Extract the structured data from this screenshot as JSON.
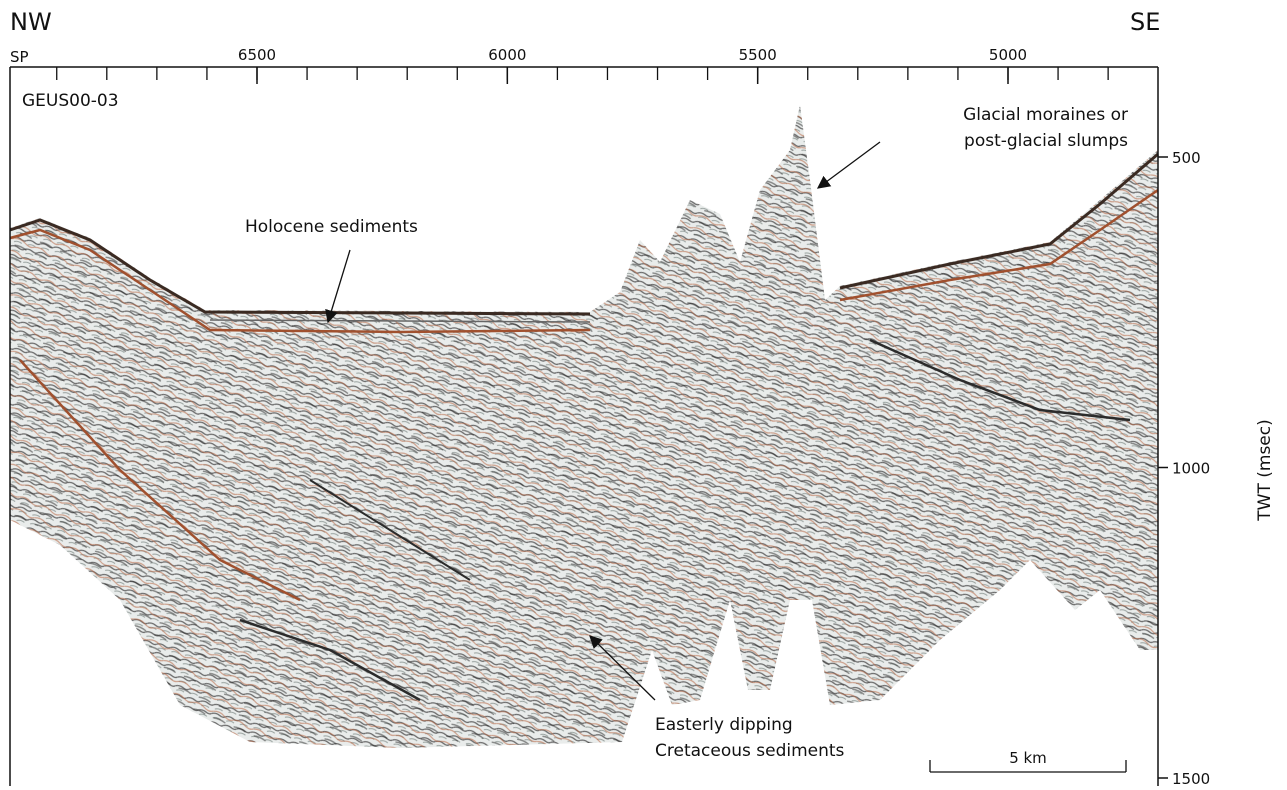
{
  "header": {
    "left": "NW",
    "right": "SE"
  },
  "profile": {
    "label": "GEUS00-03"
  },
  "top_axis": {
    "label": "SP",
    "ticks": [
      6500,
      6000,
      5500,
      5000
    ]
  },
  "right_axis": {
    "label": "TWT (msec)",
    "ticks": [
      500,
      1000,
      1500
    ]
  },
  "annotations": {
    "holocene": "Holocene sediments",
    "glacial": [
      "Glacial moraines or",
      "post-glacial slumps"
    ],
    "cretaceous": [
      "Easterly dipping",
      "Cretaceous sediments"
    ]
  },
  "scale_bar": "5 km"
}
